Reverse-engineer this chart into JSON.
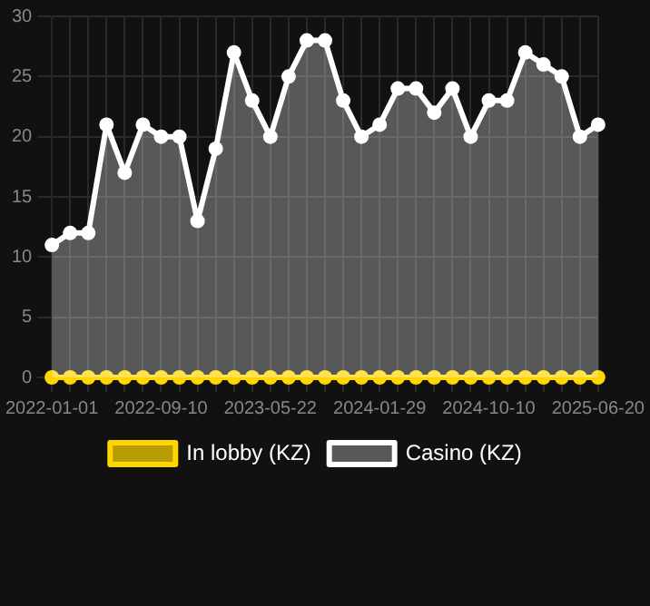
{
  "chart_data": {
    "type": "line",
    "categories": [
      "2022-01-01",
      null,
      null,
      null,
      null,
      null,
      "2022-09-10",
      null,
      null,
      null,
      null,
      null,
      "2023-05-22",
      null,
      null,
      null,
      null,
      null,
      "2024-01-29",
      null,
      null,
      null,
      null,
      null,
      "2024-10-10",
      null,
      null,
      null,
      null,
      null,
      "2025-06-20"
    ],
    "series": [
      {
        "name": "In lobby (KZ)",
        "type": "line",
        "color": "#ffd700",
        "values": [
          0,
          0,
          0,
          0,
          0,
          0,
          0,
          0,
          0,
          0,
          0,
          0,
          0,
          0,
          0,
          0,
          0,
          0,
          0,
          0,
          0,
          0,
          0,
          0,
          0,
          0,
          0,
          0,
          0,
          0,
          0
        ]
      },
      {
        "name": "Casino (KZ)",
        "type": "area",
        "color": "#ffffff",
        "values": [
          11,
          12,
          12,
          21,
          17,
          21,
          20,
          20,
          13,
          19,
          27,
          23,
          20,
          25,
          28,
          28,
          23,
          20,
          21,
          24,
          24,
          22,
          24,
          20,
          23,
          23,
          27,
          26,
          25,
          20,
          21
        ]
      }
    ],
    "ylim": [
      0,
      30
    ],
    "yticks": [
      0,
      5,
      10,
      15,
      20,
      25,
      30
    ],
    "grid": true,
    "legend": "bottom",
    "marker": "circle",
    "line_style": "solid"
  }
}
